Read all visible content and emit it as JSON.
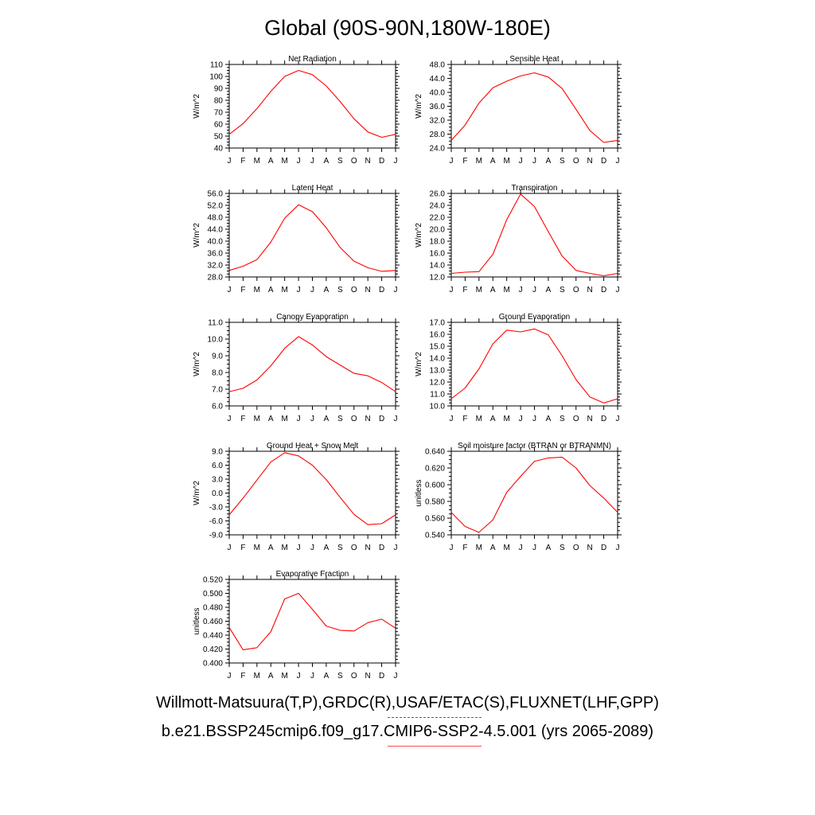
{
  "title": "Global (90S-90N,180W-180E)",
  "legend": {
    "observations": "Willmott-Matsuura(T,P),GRDC(R),USAF/ETAC(S),FLUXNET(LHF,GPP)",
    "model": "b.e21.BSSP245cmip6.f09_g17.CMIP6-SSP2-4.5.001 (yrs 2065-2089)",
    "observations_color": "#4a4aff",
    "model_color": "#ff0000"
  },
  "chart_data": [
    {
      "type": "line",
      "title": "Net Radiation",
      "xlabel": "",
      "ylabel": "W/m^2",
      "categories": [
        "J",
        "F",
        "M",
        "A",
        "M",
        "J",
        "J",
        "A",
        "S",
        "O",
        "N",
        "D",
        "J"
      ],
      "ylim": [
        40,
        110
      ],
      "yticks": [
        "40",
        "50",
        "60",
        "70",
        "80",
        "90",
        "100",
        "110"
      ],
      "series": [
        {
          "color": "#ff0000",
          "values": [
            51.5,
            60.5,
            73,
            87.5,
            100,
            105,
            101.5,
            92,
            79,
            64.5,
            53.5,
            49,
            51.5
          ]
        }
      ]
    },
    {
      "type": "line",
      "title": "Sensible Heat",
      "xlabel": "",
      "ylabel": "W/m^2",
      "categories": [
        "J",
        "F",
        "M",
        "A",
        "M",
        "J",
        "J",
        "A",
        "S",
        "O",
        "N",
        "D",
        "J"
      ],
      "ylim": [
        24,
        48
      ],
      "yticks": [
        "24.0",
        "28.0",
        "32.0",
        "36.0",
        "40.0",
        "44.0",
        "48.0"
      ],
      "series": [
        {
          "color": "#ff0000",
          "values": [
            26.2,
            30.6,
            36.9,
            41.3,
            43.2,
            44.7,
            45.6,
            44.4,
            41.1,
            35.1,
            29,
            25.6,
            26.2
          ]
        }
      ]
    },
    {
      "type": "line",
      "title": "Latent Heat",
      "xlabel": "",
      "ylabel": "W/m^2",
      "categories": [
        "J",
        "F",
        "M",
        "A",
        "M",
        "J",
        "J",
        "A",
        "S",
        "O",
        "N",
        "D",
        "J"
      ],
      "ylim": [
        28,
        56
      ],
      "yticks": [
        "28.0",
        "32.0",
        "36.0",
        "40.0",
        "44.0",
        "48.0",
        "52.0",
        "56.0"
      ],
      "series": [
        {
          "color": "#ff0000",
          "values": [
            30.2,
            31.6,
            33.8,
            39.7,
            47.7,
            52.2,
            49.9,
            44.5,
            37.9,
            33.3,
            31.1,
            29.9,
            30.2
          ]
        }
      ]
    },
    {
      "type": "line",
      "title": "Transpiration",
      "xlabel": "",
      "ylabel": "W/m^2",
      "categories": [
        "J",
        "F",
        "M",
        "A",
        "M",
        "J",
        "J",
        "A",
        "S",
        "O",
        "N",
        "D",
        "J"
      ],
      "ylim": [
        12,
        26
      ],
      "yticks": [
        "12.0",
        "14.0",
        "16.0",
        "18.0",
        "20.0",
        "22.0",
        "24.0",
        "26.0"
      ],
      "series": [
        {
          "color": "#ff0000",
          "values": [
            12.6,
            12.8,
            12.9,
            15.8,
            21.6,
            25.9,
            23.8,
            19.6,
            15.5,
            13.1,
            12.6,
            12.2,
            12.6
          ]
        }
      ]
    },
    {
      "type": "line",
      "title": "Canopy Evaporation",
      "xlabel": "",
      "ylabel": "W/m^2",
      "categories": [
        "J",
        "F",
        "M",
        "A",
        "M",
        "J",
        "J",
        "A",
        "S",
        "O",
        "N",
        "D",
        "J"
      ],
      "ylim": [
        6,
        11
      ],
      "yticks": [
        "6.0",
        "7.0",
        "8.0",
        "9.0",
        "10.0",
        "11.0"
      ],
      "series": [
        {
          "color": "#ff0000",
          "values": [
            6.85,
            7.05,
            7.55,
            8.4,
            9.45,
            10.15,
            9.65,
            8.95,
            8.45,
            7.95,
            7.8,
            7.4,
            6.85
          ]
        }
      ]
    },
    {
      "type": "line",
      "title": "Ground Evaporation",
      "xlabel": "",
      "ylabel": "W/m^2",
      "categories": [
        "J",
        "F",
        "M",
        "A",
        "M",
        "J",
        "J",
        "A",
        "S",
        "O",
        "N",
        "D",
        "J"
      ],
      "ylim": [
        10,
        17
      ],
      "yticks": [
        "10.0",
        "11.0",
        "12.0",
        "13.0",
        "14.0",
        "15.0",
        "16.0",
        "17.0"
      ],
      "series": [
        {
          "color": "#ff0000",
          "values": [
            10.6,
            11.5,
            13.1,
            15.2,
            16.35,
            16.2,
            16.45,
            15.95,
            14.2,
            12.2,
            10.75,
            10.25,
            10.6
          ]
        }
      ]
    },
    {
      "type": "line",
      "title": "Ground Heat + Snow Melt",
      "xlabel": "",
      "ylabel": "W/m^2",
      "categories": [
        "J",
        "F",
        "M",
        "A",
        "M",
        "J",
        "J",
        "A",
        "S",
        "O",
        "N",
        "D",
        "J"
      ],
      "ylim": [
        -9,
        9
      ],
      "yticks": [
        "-9.0",
        "-6.0",
        "-3.0",
        "0.0",
        "3.0",
        "6.0",
        "9.0"
      ],
      "series": [
        {
          "color": "#ff0000",
          "values": [
            -4.7,
            -1.1,
            2.8,
            6.7,
            8.7,
            8,
            6,
            2.9,
            -0.9,
            -4.6,
            -6.8,
            -6.6,
            -4.7
          ]
        }
      ]
    },
    {
      "type": "line",
      "title": "Soil moisture factor (BTRAN or BTRANMN)",
      "xlabel": "",
      "ylabel": "unitless",
      "categories": [
        "J",
        "F",
        "M",
        "A",
        "M",
        "J",
        "J",
        "A",
        "S",
        "O",
        "N",
        "D",
        "J"
      ],
      "ylim": [
        0.54,
        0.64
      ],
      "yticks": [
        "0.540",
        "0.560",
        "0.580",
        "0.600",
        "0.620",
        "0.640"
      ],
      "series": [
        {
          "color": "#ff0000",
          "values": [
            0.567,
            0.55,
            0.543,
            0.558,
            0.591,
            0.61,
            0.628,
            0.632,
            0.633,
            0.62,
            0.599,
            0.584,
            0.567
          ]
        }
      ]
    },
    {
      "type": "line",
      "title": "Evaporative Fraction",
      "xlabel": "",
      "ylabel": "unitless",
      "categories": [
        "J",
        "F",
        "M",
        "A",
        "M",
        "J",
        "J",
        "A",
        "S",
        "O",
        "N",
        "D",
        "J"
      ],
      "ylim": [
        0.4,
        0.52
      ],
      "yticks": [
        "0.400",
        "0.420",
        "0.440",
        "0.460",
        "0.480",
        "0.500",
        "0.520"
      ],
      "series": [
        {
          "color": "#ff0000",
          "values": [
            0.451,
            0.419,
            0.422,
            0.445,
            0.492,
            0.5,
            0.477,
            0.453,
            0.447,
            0.446,
            0.458,
            0.463,
            0.45
          ]
        }
      ]
    }
  ]
}
